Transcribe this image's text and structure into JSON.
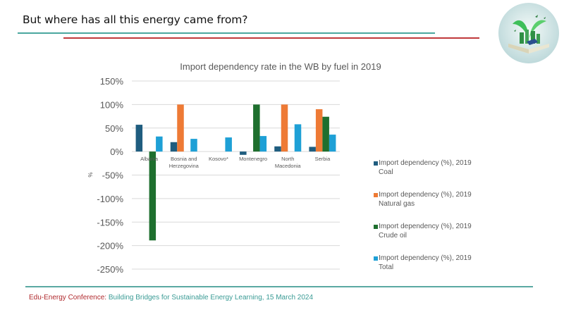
{
  "slide": {
    "title": "But where has all this energy came from?",
    "logo_icon": "book-green-city-icon"
  },
  "footer": {
    "label": "Edu-Energy Conference:",
    "text": " Building Bridges for Sustainable Energy Learning, 15 March 2024"
  },
  "colors": {
    "title_line": "#4aa79f",
    "accent_line": "#c0393b",
    "coal": "#1f5d7f",
    "natural_gas": "#ee7a35",
    "crude_oil": "#1e6f2e",
    "total": "#1ea0d6"
  },
  "chart_data": {
    "type": "bar",
    "title": "Import dependency rate in the WB by fuel in 2019",
    "xlabel": "",
    "ylabel": "%",
    "ylim": [
      -250,
      150
    ],
    "yticks": [
      150,
      100,
      50,
      0,
      -50,
      -100,
      -150,
      -200,
      -250
    ],
    "ytick_labels": [
      "150%",
      "100%",
      "50%",
      "0%",
      "-50%",
      "-100%",
      "-150%",
      "-200%",
      "-250%"
    ],
    "grid": true,
    "legend_position": "right",
    "categories": [
      "Albania",
      "Bosnia and Herzegovina",
      "Kosovo*",
      "Montenegro",
      "North Macedonia",
      "Serbia"
    ],
    "category_lines": [
      [
        "Albania"
      ],
      [
        "Bosnia and",
        "Herzegovina"
      ],
      [
        "Kosovo*"
      ],
      [
        "Montenegro"
      ],
      [
        "North",
        "Macedonia"
      ],
      [
        "Serbia"
      ]
    ],
    "series": [
      {
        "name": "Import dependency (%), 2019 Coal",
        "line1": "Import dependency (%), 2019",
        "line2": "Coal",
        "color": "#1f5d7f",
        "values": [
          57,
          20,
          null,
          -7,
          11,
          10
        ]
      },
      {
        "name": "Import dependency (%), 2019 Natural gas",
        "line1": "Import dependency (%), 2019",
        "line2": "Natural gas",
        "color": "#ee7a35",
        "values": [
          null,
          100,
          null,
          null,
          100,
          90
        ]
      },
      {
        "name": "Import dependency (%), 2019 Crude oil",
        "line1": "Import dependency (%), 2019",
        "line2": "Crude oil",
        "color": "#1e6f2e",
        "values": [
          -189,
          null,
          null,
          100,
          null,
          74
        ]
      },
      {
        "name": "Import dependency (%), 2019 Total",
        "line1": "Import dependency (%), 2019",
        "line2": "Total",
        "color": "#1ea0d6",
        "values": [
          32,
          27,
          30,
          33,
          58,
          36
        ]
      }
    ]
  }
}
